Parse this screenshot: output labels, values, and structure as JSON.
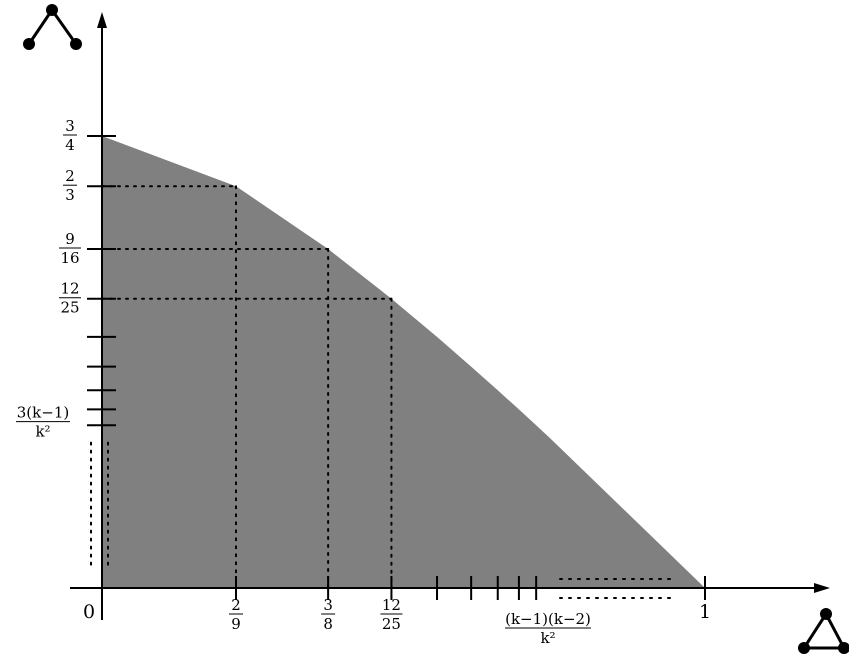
{
  "chart_data": {
    "type": "area",
    "title": "",
    "xlabel": "",
    "ylabel": "",
    "x_axis_icon": "triangle-graph-icon",
    "y_axis_icon": "cherry-path-graph-icon",
    "area_color": "#808080",
    "xlim": [
      0,
      1
    ],
    "ylim": [
      0,
      0.75
    ],
    "boundary": {
      "x": [
        0,
        0.2222,
        0.375,
        0.48,
        0.5556,
        0.6122,
        0.6563,
        0.6914,
        0.72,
        0.7438,
        1
      ],
      "y": [
        0.75,
        0.6667,
        0.5625,
        0.48,
        0.4167,
        0.3673,
        0.3281,
        0.2963,
        0.27,
        0.2479,
        0
      ]
    },
    "x_ticks": [
      {
        "value": 0,
        "num": "",
        "den": "",
        "text": "0"
      },
      {
        "value": 0.2222,
        "num": "2",
        "den": "9",
        "text": ""
      },
      {
        "value": 0.375,
        "num": "3",
        "den": "8",
        "text": ""
      },
      {
        "value": 0.48,
        "num": "12",
        "den": "25",
        "text": ""
      },
      {
        "value": 0.5556,
        "num": "",
        "den": "",
        "text": ""
      },
      {
        "value": 0.6122,
        "num": "",
        "den": "",
        "text": ""
      },
      {
        "value": 0.6563,
        "num": "",
        "den": "",
        "text": ""
      },
      {
        "value": 0.6914,
        "num": "",
        "den": "",
        "text": ""
      },
      {
        "value": 0.72,
        "num": "",
        "den": "",
        "text": ""
      },
      {
        "value": 1,
        "num": "",
        "den": "",
        "text": "1"
      }
    ],
    "x_general_label": {
      "value": 0.7438,
      "num": "(k−1)(k−2)",
      "den": "k²"
    },
    "y_ticks": [
      {
        "value": 0.75,
        "num": "3",
        "den": "4"
      },
      {
        "value": 0.6667,
        "num": "2",
        "den": "3"
      },
      {
        "value": 0.5625,
        "num": "9",
        "den": "16"
      },
      {
        "value": 0.48,
        "num": "12",
        "den": "25"
      },
      {
        "value": 0.4167,
        "num": "",
        "den": ""
      },
      {
        "value": 0.3673,
        "num": "",
        "den": ""
      },
      {
        "value": 0.3281,
        "num": "",
        "den": ""
      },
      {
        "value": 0.2963,
        "num": "",
        "den": ""
      },
      {
        "value": 0.27,
        "num": "",
        "den": ""
      }
    ],
    "y_general_label": {
      "value": 0.2479,
      "num": "3(k−1)",
      "den": "k²"
    },
    "dotted_guides": [
      {
        "x": 0.2222,
        "y": 0.6667
      },
      {
        "x": 0.375,
        "y": 0.5625
      },
      {
        "x": 0.48,
        "y": 0.48
      }
    ]
  }
}
